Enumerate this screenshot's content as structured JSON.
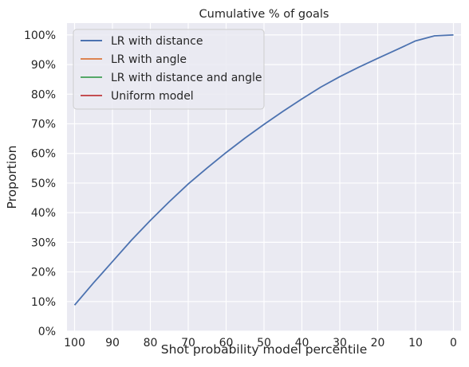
{
  "chart_data": {
    "type": "line",
    "title": "Cumulative % of goals",
    "xlabel": "Shot probability model percentile",
    "ylabel": "Proportion",
    "xlim": [
      102,
      -2
    ],
    "ylim": [
      0,
      1.04
    ],
    "x_ticks": [
      100,
      90,
      80,
      70,
      60,
      50,
      40,
      30,
      20,
      10,
      0
    ],
    "x_tick_labels": [
      "100",
      "90",
      "80",
      "70",
      "60",
      "50",
      "40",
      "30",
      "20",
      "10",
      "0"
    ],
    "y_ticks": [
      0,
      0.1,
      0.2,
      0.3,
      0.4,
      0.5,
      0.6,
      0.7,
      0.8,
      0.9,
      1.0
    ],
    "y_tick_labels": [
      "0%",
      "10%",
      "20%",
      "30%",
      "40%",
      "50%",
      "60%",
      "70%",
      "80%",
      "90%",
      "100%"
    ],
    "grid": true,
    "legend_position": "top-left",
    "series": [
      {
        "name": "LR with distance",
        "color": "#4c72b0",
        "x": [
          100,
          95,
          90,
          85,
          80,
          75,
          70,
          65,
          60,
          55,
          50,
          45,
          40,
          35,
          30,
          25,
          20,
          15,
          10,
          5,
          0
        ],
        "y": [
          0.088,
          0.163,
          0.235,
          0.307,
          0.374,
          0.437,
          0.497,
          0.551,
          0.603,
          0.652,
          0.698,
          0.742,
          0.784,
          0.824,
          0.859,
          0.891,
          0.921,
          0.95,
          0.98,
          0.997,
          1.0
        ]
      },
      {
        "name": "LR with angle",
        "color": "#dd8452",
        "x": [],
        "y": []
      },
      {
        "name": "LR with distance and angle",
        "color": "#55a868",
        "x": [],
        "y": []
      },
      {
        "name": "Uniform model",
        "color": "#c44e52",
        "x": [],
        "y": []
      }
    ]
  }
}
